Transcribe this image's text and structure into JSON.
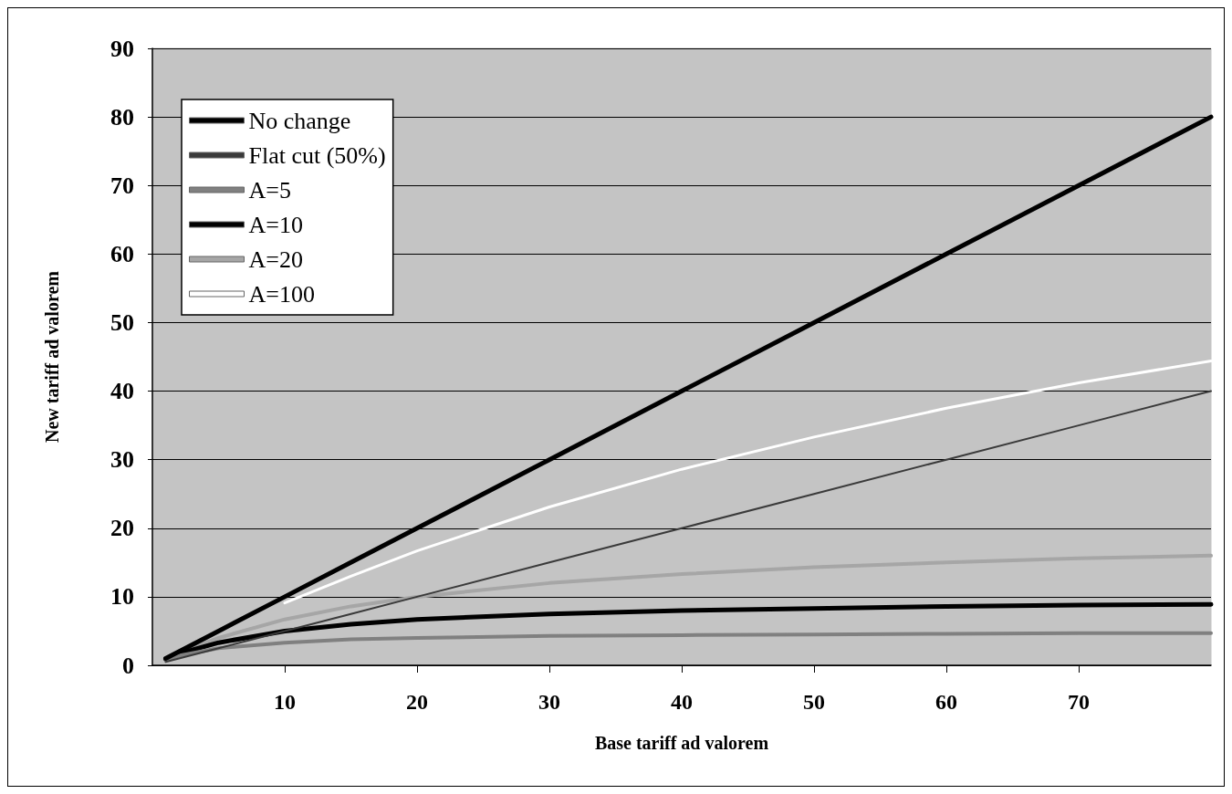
{
  "chart_data": {
    "type": "line",
    "xlabel": "Base tariff ad valorem",
    "ylabel": "New tariff ad valorem",
    "x": [
      1,
      2,
      5,
      10,
      15,
      20,
      30,
      40,
      50,
      60,
      70,
      80
    ],
    "series": [
      {
        "name": "No change",
        "color": "#000000",
        "values": [
          1,
          2,
          5,
          10,
          15,
          20,
          30,
          40,
          50,
          60,
          70,
          80
        ]
      },
      {
        "name": "Flat cut (50%)",
        "color": "#3a3a3a",
        "values": [
          0.5,
          1,
          2.5,
          5,
          7.5,
          10,
          15,
          20,
          25,
          30,
          35,
          40
        ]
      },
      {
        "name": "A=5",
        "color": "#808080",
        "values": [
          0.8,
          1.4,
          2.5,
          3.3,
          3.8,
          4.0,
          4.3,
          4.4,
          4.5,
          4.6,
          4.7,
          4.7
        ]
      },
      {
        "name": "A=10",
        "color": "#000000",
        "values": [
          0.9,
          1.7,
          3.3,
          5.0,
          6.0,
          6.7,
          7.5,
          8.0,
          8.3,
          8.6,
          8.8,
          8.9
        ]
      },
      {
        "name": "A=20",
        "color": "#a6a6a6",
        "values": [
          1.0,
          1.8,
          4.0,
          6.7,
          8.6,
          10.0,
          12.0,
          13.3,
          14.3,
          15.0,
          15.6,
          16.0
        ]
      },
      {
        "name": "A=100",
        "color": "#ffffff",
        "values": [
          null,
          null,
          null,
          9.1,
          13.0,
          16.7,
          23.1,
          28.6,
          33.3,
          37.5,
          41.2,
          44.4
        ]
      }
    ],
    "xlim": [
      0,
      80
    ],
    "xticks": [
      10,
      20,
      30,
      40,
      50,
      60,
      70
    ],
    "ylim": [
      0,
      90
    ],
    "yticks": [
      0,
      10,
      20,
      30,
      40,
      50,
      60,
      70,
      80,
      90
    ],
    "grid": "y",
    "legend": "top left",
    "marker": "none",
    "line_style": "solid"
  }
}
